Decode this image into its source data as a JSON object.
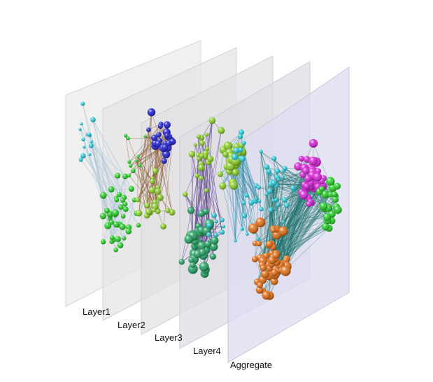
{
  "figure": {
    "layers": [
      {
        "label": "Layer1",
        "fill": "#e9e9ea",
        "stroke": "#d7d7da"
      },
      {
        "label": "Layer2",
        "fill": "#e4e4e6",
        "stroke": "#d3d3d6"
      },
      {
        "label": "Layer3",
        "fill": "#e1e1e4",
        "stroke": "#d0d0d4"
      },
      {
        "label": "Layer4",
        "fill": "#dddde2",
        "stroke": "#cdcdd2"
      },
      {
        "label": "Aggregate",
        "fill": "#dcdcf0",
        "stroke": "#c8c8e2"
      }
    ],
    "edge_colors": {
      "layer1": "#a9c3d6",
      "layer2": "#8b5a2b",
      "layer3": "#5a3c8a",
      "layer4": "#3d8fa8",
      "aggregate": "#0f6b61"
    },
    "community_colors": {
      "green": "#22cc22",
      "light_green": "#88cc22",
      "blue": "#1a1acc",
      "teal_green": "#1f9e5f",
      "cyan": "#22c8d8",
      "magenta": "#d81ed8",
      "orange": "#e06a10"
    }
  }
}
